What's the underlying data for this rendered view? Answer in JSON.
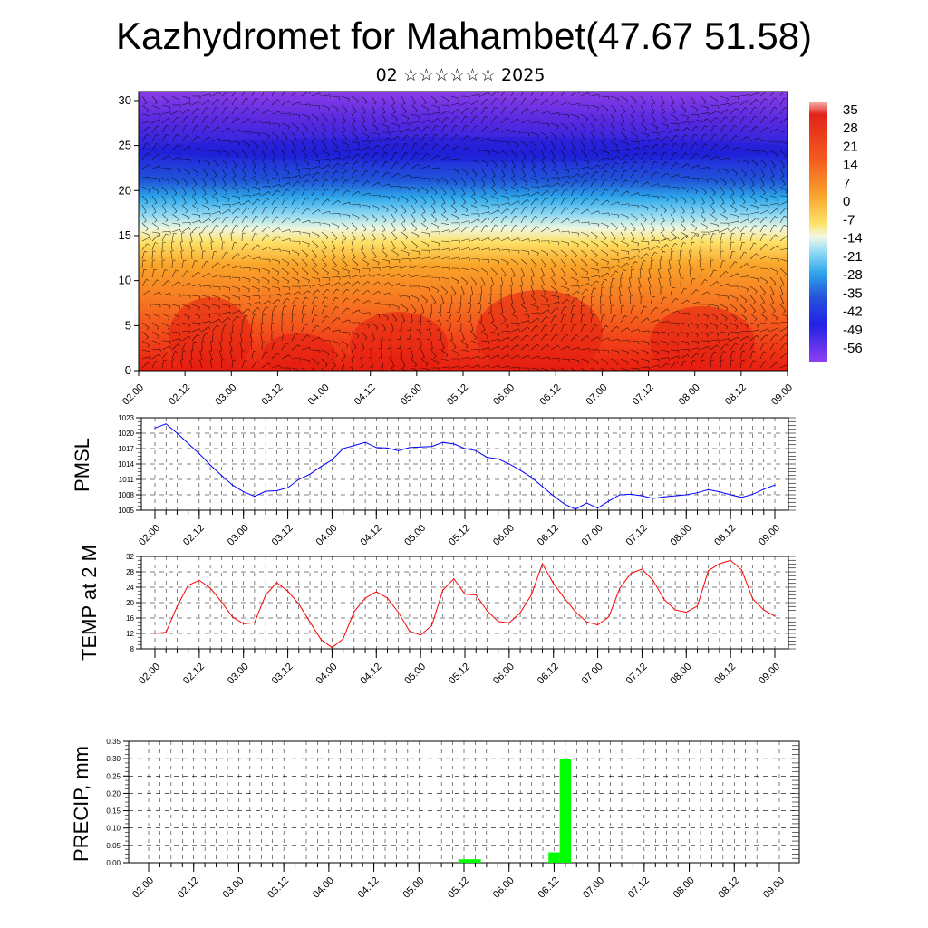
{
  "header": {
    "title": "Kazhydromet for Mahambet(47.67 51.58)",
    "subtitle": "02 ☆☆☆☆☆☆ 2025"
  },
  "time_labels": [
    "02.00",
    "02.12",
    "03.00",
    "03.12",
    "04.00",
    "04.12",
    "05.00",
    "05.12",
    "06.00",
    "06.12",
    "07.00",
    "07.12",
    "08.00",
    "08.12",
    "09.00"
  ],
  "colors": {
    "pmsl_line": "#0000ff",
    "temp_line": "#ff0000",
    "precip_bar": "#00ff00"
  },
  "chart_data": [
    {
      "type": "heatmap",
      "name": "cross-section",
      "y_ticks": [
        "0",
        "5",
        "10",
        "15",
        "20",
        "25",
        "30"
      ],
      "ylim": [
        0,
        31
      ],
      "x_ticks": [
        "02.00",
        "02.12",
        "03.00",
        "03.12",
        "04.00",
        "04.12",
        "05.00",
        "05.12",
        "06.00",
        "06.12",
        "07.00",
        "07.12",
        "08.00",
        "08.12",
        "09.00"
      ],
      "colorbar_labels": [
        "35",
        "28",
        "21",
        "14",
        "7",
        "0",
        "-7",
        "-14",
        "-21",
        "-28",
        "-35",
        "-42",
        "-49",
        "-56"
      ],
      "overlay": "wind barbs"
    },
    {
      "type": "line",
      "ylabel": "PMSL",
      "y_ticks": [
        "1023",
        "1020",
        "1017",
        "1014",
        "1011",
        "1008",
        "1005"
      ],
      "ylim": [
        1005,
        1023
      ],
      "x_ticks": [
        "02.00",
        "02.12",
        "03.00",
        "03.12",
        "04.00",
        "04.12",
        "05.00",
        "05.12",
        "06.00",
        "06.12",
        "07.00",
        "07.12",
        "08.00",
        "08.12",
        "09.00"
      ],
      "x": [
        0,
        3,
        6,
        9,
        12,
        15,
        18,
        21,
        24,
        27,
        30,
        33,
        36,
        39,
        42,
        45,
        48,
        51,
        54,
        57,
        60,
        63,
        66,
        69,
        72,
        75,
        78,
        81,
        84,
        87,
        90,
        93,
        96,
        99,
        102,
        105,
        108,
        111,
        114,
        117,
        120,
        123,
        126,
        129,
        132,
        135,
        138,
        141,
        144,
        147,
        150,
        153,
        156,
        159,
        162,
        165,
        168
      ],
      "values": [
        1021,
        1021.8,
        1020,
        1018,
        1016,
        1013.8,
        1011.8,
        1009.9,
        1008.6,
        1007.7,
        1008.7,
        1008.8,
        1009.4,
        1011,
        1012,
        1013.5,
        1014.8,
        1017,
        1017.6,
        1018.2,
        1017.2,
        1017.1,
        1016.6,
        1017.2,
        1017.3,
        1017.4,
        1018.2,
        1017.9,
        1017,
        1016.6,
        1015.3,
        1015,
        1014,
        1012.8,
        1011.4,
        1009.6,
        1007.8,
        1006.2,
        1005.2,
        1006.4,
        1005.4,
        1006.8,
        1008,
        1008.1,
        1007.8,
        1007.3,
        1007.6,
        1007.8,
        1008,
        1008.4,
        1009,
        1008.6,
        1008,
        1007.5,
        1008.1,
        1009.1,
        1009.9
      ]
    },
    {
      "type": "line",
      "ylabel": "TEMP at 2 M",
      "y_ticks": [
        "32",
        "28",
        "24",
        "20",
        "16",
        "12",
        "8"
      ],
      "ylim": [
        8,
        32
      ],
      "x_ticks": [
        "02.00",
        "02.12",
        "03.00",
        "03.12",
        "04.00",
        "04.12",
        "05.00",
        "05.12",
        "06.00",
        "06.12",
        "07.00",
        "07.12",
        "08.00",
        "08.12",
        "09.00"
      ],
      "x": [
        0,
        3,
        6,
        9,
        12,
        15,
        18,
        21,
        24,
        27,
        30,
        33,
        36,
        39,
        42,
        45,
        48,
        51,
        54,
        57,
        60,
        63,
        66,
        69,
        72,
        75,
        78,
        81,
        84,
        87,
        90,
        93,
        96,
        99,
        102,
        105,
        108,
        111,
        114,
        117,
        120,
        123,
        126,
        129,
        132,
        135,
        138,
        141,
        144,
        147,
        150,
        153,
        156,
        159,
        162,
        165,
        168
      ],
      "values": [
        12,
        12.3,
        19,
        24.5,
        25.8,
        23.8,
        20.2,
        16.3,
        14.5,
        14.8,
        22,
        25.2,
        23,
        19.6,
        15,
        10.4,
        8.3,
        10.6,
        17.7,
        21.2,
        22.8,
        21.2,
        17.4,
        12.6,
        11.6,
        14,
        23.2,
        26.2,
        22.2,
        22,
        17.9,
        15.1,
        14.7,
        17.4,
        22,
        30.1,
        25,
        21.1,
        17.6,
        15,
        14.2,
        16.3,
        23.8,
        27.6,
        28.7,
        25.8,
        20.8,
        18.1,
        17.5,
        19.1,
        28.3,
        30.1,
        31,
        28.5,
        21,
        18.1,
        16.5
      ]
    },
    {
      "type": "bar",
      "ylabel": "PRECIP, mm",
      "y_ticks": [
        "0.35",
        "0.30",
        "0.25",
        "0.20",
        "0.15",
        "0.10",
        "0.05",
        "0.00"
      ],
      "ylim": [
        0,
        0.35
      ],
      "x_ticks": [
        "02.00",
        "02.12",
        "03.00",
        "03.12",
        "04.00",
        "04.12",
        "05.00",
        "05.12",
        "06.00",
        "06.12",
        "07.00",
        "07.12",
        "08.00",
        "08.12",
        "09.00"
      ],
      "bars": [
        {
          "x": 84,
          "value": 0.01
        },
        {
          "x": 87,
          "value": 0.01
        },
        {
          "x": 108,
          "value": 0.03
        },
        {
          "x": 111,
          "value": 0.3
        }
      ]
    }
  ]
}
